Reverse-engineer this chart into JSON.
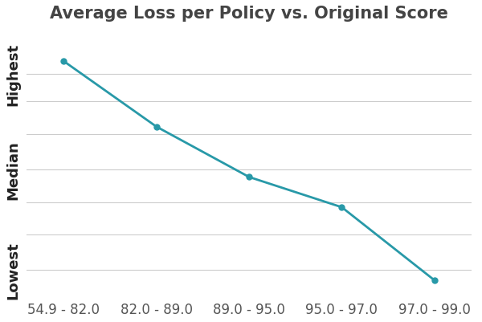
{
  "title": "Average Loss per Policy vs. Original Score",
  "x_labels": [
    "54.9 - 82.0",
    "82.0 - 89.0",
    "89.0 - 95.0",
    "95.0 - 97.0",
    "97.0 - 99.0"
  ],
  "y_values": [
    0.93,
    0.67,
    0.47,
    0.35,
    0.06
  ],
  "y_tick_positions": [
    0.1,
    0.5,
    0.88
  ],
  "y_tick_labels": [
    "Lowest",
    "Median",
    "Highest"
  ],
  "line_color": "#2899a8",
  "marker_color": "#2899a8",
  "marker_size": 5,
  "linewidth": 2.0,
  "background_color": "#ffffff",
  "grid_color": "#cccccc",
  "grid_positions": [
    0.1,
    0.24,
    0.37,
    0.5,
    0.64,
    0.77,
    0.88
  ],
  "title_fontsize": 15,
  "tick_fontsize": 12,
  "ytick_fontsize": 13,
  "title_color": "#444444",
  "tick_color": "#555555",
  "title_fontweight": "bold"
}
